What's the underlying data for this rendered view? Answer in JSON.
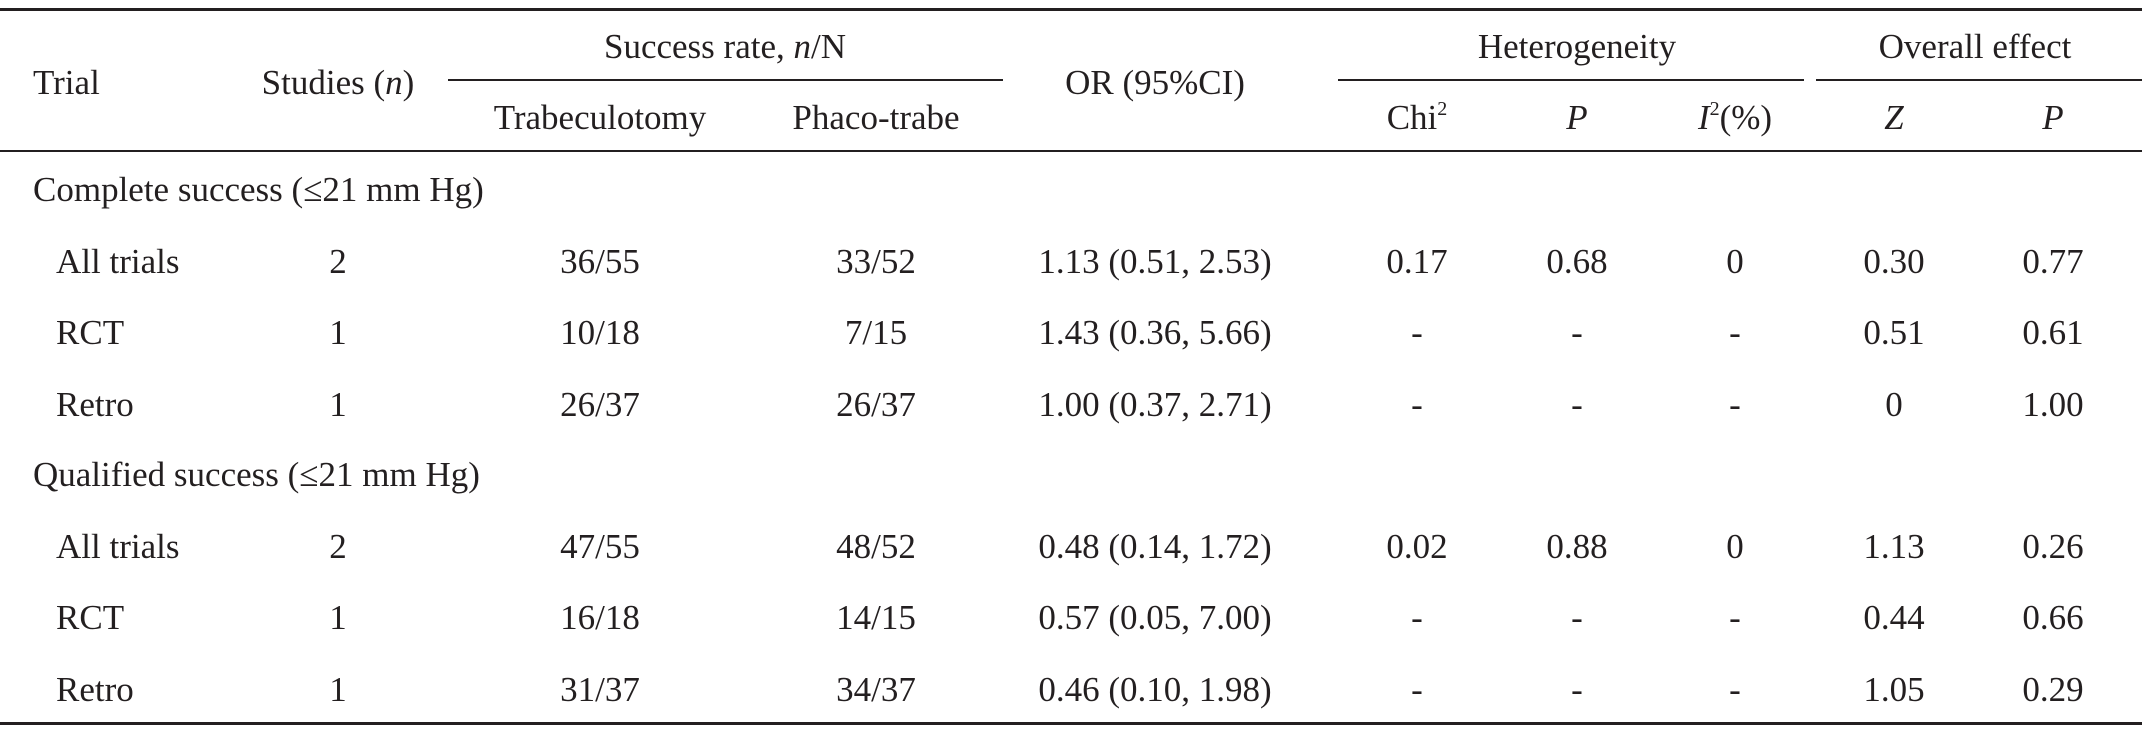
{
  "table": {
    "header": {
      "trial": "Trial",
      "studies": [
        "Studies (",
        "n",
        ")"
      ],
      "success_rate": [
        "Success rate, ",
        "n",
        "/N"
      ],
      "trabeculotomy": "Trabeculotomy",
      "phaco_trabe": "Phaco-trabe",
      "or": "OR (95%CI)",
      "heterogeneity": "Heterogeneity",
      "chi": "Chi",
      "chi_sup": "2",
      "het_p": "P",
      "i2_i": "I",
      "i2_sup": "2",
      "i2_rest": "(%)",
      "overall": "Overall effect",
      "z": "Z",
      "overall_p": "P"
    },
    "groups": [
      {
        "title": "Complete success (≤21 mm Hg)",
        "rows": [
          [
            "All trials",
            "2",
            "36/55",
            "33/52",
            "1.13 (0.51, 2.53)",
            "0.17",
            "0.68",
            "0",
            "0.30",
            "0.77"
          ],
          [
            "RCT",
            "1",
            "10/18",
            "7/15",
            "1.43 (0.36, 5.66)",
            "-",
            "-",
            "-",
            "0.51",
            "0.61"
          ],
          [
            "Retro",
            "1",
            "26/37",
            "26/37",
            "1.00 (0.37, 2.71)",
            "-",
            "-",
            "-",
            "0",
            "1.00"
          ]
        ]
      },
      {
        "title": "Qualified success (≤21 mm Hg)",
        "rows": [
          [
            "All trials",
            "2",
            "47/55",
            "48/52",
            "0.48 (0.14, 1.72)",
            "0.02",
            "0.88",
            "0",
            "1.13",
            "0.26"
          ],
          [
            "RCT",
            "1",
            "16/18",
            "14/15",
            "0.57 (0.05, 7.00)",
            "-",
            "-",
            "-",
            "0.44",
            "0.66"
          ],
          [
            "Retro",
            "1",
            "31/37",
            "34/37",
            "0.46 (0.10, 1.98)",
            "-",
            "-",
            "-",
            "1.05",
            "0.29"
          ]
        ]
      }
    ]
  }
}
